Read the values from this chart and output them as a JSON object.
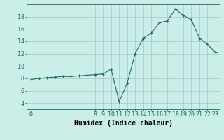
{
  "xlabel": "Humidex (Indice chaleur)",
  "bg_color": "#cceee8",
  "grid_color": "#aacccc",
  "line_color": "#1a6b60",
  "x_data": [
    0,
    1,
    2,
    3,
    4,
    5,
    6,
    7,
    8,
    9,
    10,
    11,
    12,
    13,
    14,
    15,
    16,
    17,
    18,
    19,
    20,
    21,
    22,
    23
  ],
  "y_data": [
    7.8,
    8.0,
    8.1,
    8.2,
    8.3,
    8.3,
    8.4,
    8.5,
    8.6,
    8.7,
    9.5,
    4.2,
    7.2,
    12.0,
    14.5,
    15.3,
    17.0,
    17.3,
    19.2,
    18.2,
    17.5,
    14.5,
    13.5,
    12.2
  ],
  "xlim": [
    -0.5,
    23.5
  ],
  "ylim": [
    3.0,
    20.0
  ],
  "xticks": [
    0,
    8,
    9,
    10,
    11,
    12,
    13,
    14,
    15,
    16,
    17,
    18,
    19,
    20,
    21,
    22,
    23
  ],
  "yticks": [
    4,
    6,
    8,
    10,
    12,
    14,
    16,
    18
  ],
  "xlabel_fontsize": 7,
  "tick_fontsize": 6
}
